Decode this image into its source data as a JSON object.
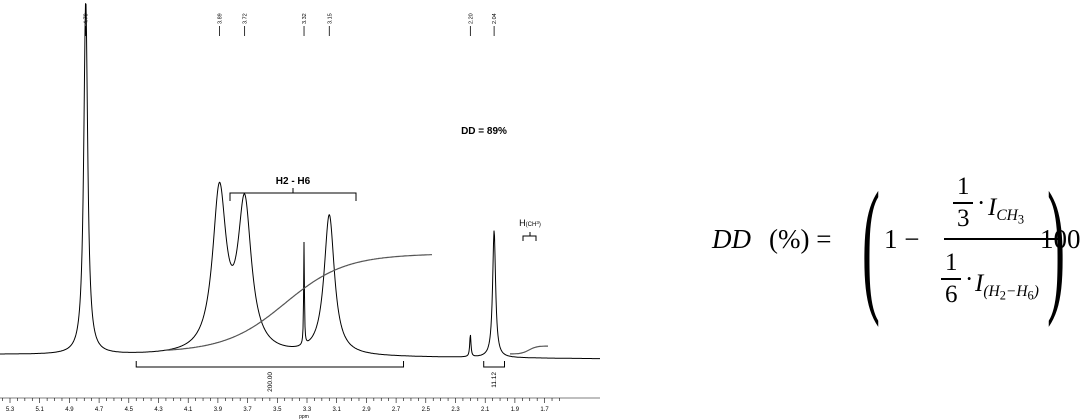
{
  "chart_data": {
    "type": "line",
    "title": "",
    "xlabel": "ppm",
    "ylabel": "",
    "xlim": [
      5.35,
      1.55
    ],
    "x_reversed": true,
    "x_ticks": [
      "5.3",
      "5.1",
      "4.9",
      "4.7",
      "4.5",
      "4.3",
      "4.1",
      "3.9",
      "3.7",
      "3.5",
      "3.3",
      "3.1",
      "2.9",
      "2.7",
      "2.5",
      "2.3",
      "2.1",
      "1.9",
      "1.7"
    ],
    "peak_labels": [
      "4.79",
      "3.89",
      "3.72",
      "3.32",
      "3.15",
      "2.20",
      "2.04"
    ],
    "peaks": [
      {
        "ppm": 4.79,
        "height": 1.1,
        "width": 0.016
      },
      {
        "ppm": 3.89,
        "height": 0.495,
        "width": 0.055
      },
      {
        "ppm": 3.72,
        "height": 0.455,
        "width": 0.055
      },
      {
        "ppm": 3.32,
        "height": 0.32,
        "width": 0.003
      },
      {
        "ppm": 3.15,
        "height": 0.435,
        "width": 0.042
      },
      {
        "ppm": 2.2,
        "height": 0.07,
        "width": 0.005
      },
      {
        "ppm": 2.04,
        "height": 0.396,
        "width": 0.012
      }
    ],
    "integrals": [
      {
        "from": 4.45,
        "to": 2.65,
        "value": "200.00"
      },
      {
        "from": 2.11,
        "to": 1.97,
        "value": "11.12"
      }
    ],
    "annotations": {
      "dd": "DD = 89%",
      "group_h": "H2 - H6",
      "ch3_main": "H",
      "ch3_sub": "(CH",
      "ch3_sub_num": "3",
      "ch3_close": ")"
    }
  },
  "equation": {
    "lhs": "DD",
    "pct": "(%) =",
    "one": "1 −",
    "num_frac_n": "1",
    "num_frac_d": "3",
    "num_dot": "·",
    "num_I": "I",
    "num_sub": "CH",
    "num_sub_sub": "3",
    "den_frac_n": "1",
    "den_frac_d": "6",
    "den_dot": "·",
    "den_I": "I",
    "den_sub_a": "(H",
    "den_sub_a_sub": "2",
    "den_sub_b": "−H",
    "den_sub_b_sub": "6",
    "den_sub_c": ")",
    "factor": "100"
  }
}
